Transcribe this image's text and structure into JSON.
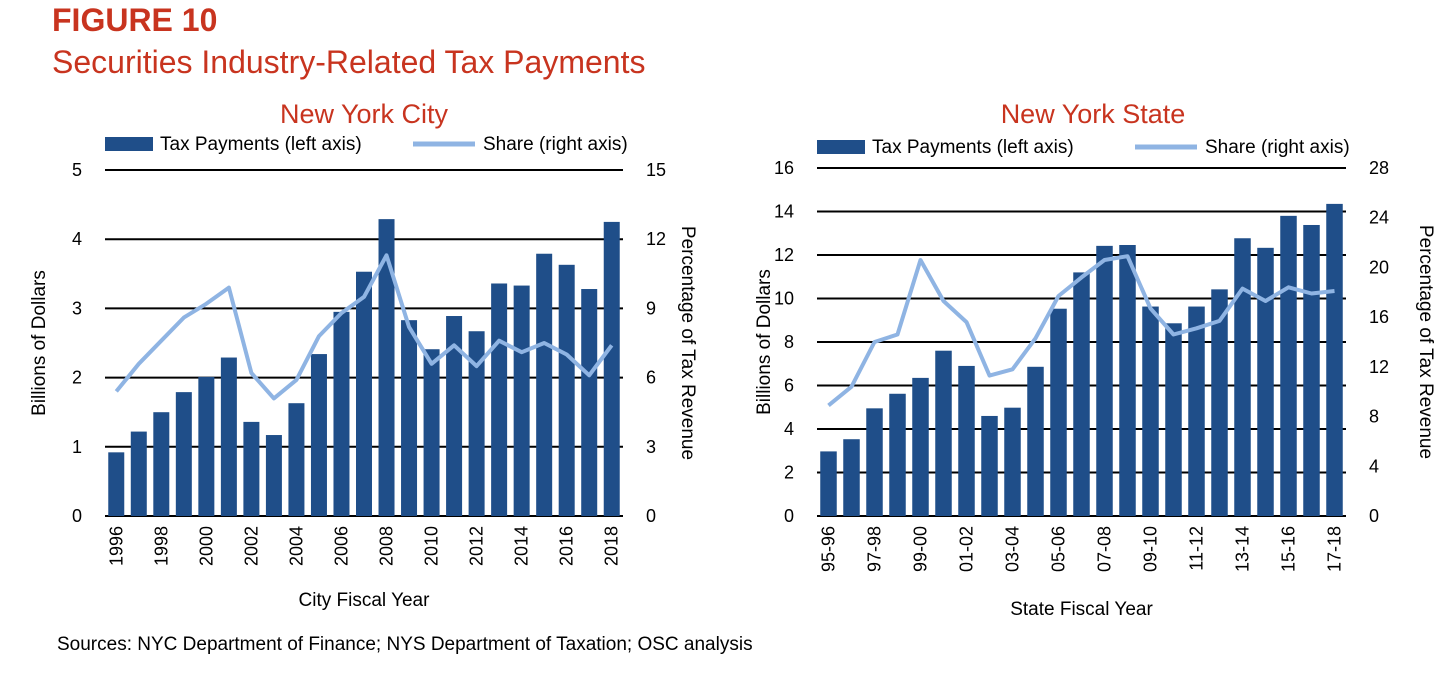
{
  "figure": {
    "label": "FIGURE 10",
    "title": "Securities Industry-Related Tax Payments",
    "source": "Sources: NYC Department of Finance; NYS Department of Taxation; OSC analysis"
  },
  "colors": {
    "bar": "#1f4e89",
    "line": "#8fb4e3",
    "title": "#c8341f",
    "grid": "#000000"
  },
  "chart_data": [
    {
      "type": "bar",
      "title": "New York City",
      "xlabel": "City Fiscal Year",
      "ylabel": "Billions of Dollars",
      "y2label": "Percentage of Tax Revenue",
      "ylim": [
        0,
        5
      ],
      "y2lim": [
        0,
        15
      ],
      "yticks": [
        0,
        1,
        2,
        3,
        4,
        5
      ],
      "y2ticks": [
        0,
        3,
        6,
        9,
        12,
        15
      ],
      "categories": [
        "1996",
        "1997",
        "1998",
        "1999",
        "2000",
        "2001",
        "2002",
        "2003",
        "2004",
        "2005",
        "2006",
        "2007",
        "2008",
        "2009",
        "2010",
        "2011",
        "2012",
        "2013",
        "2014",
        "2015",
        "2016",
        "2017",
        "2018"
      ],
      "xtick_labels": [
        "1996",
        "",
        "1998",
        "",
        "2000",
        "",
        "2002",
        "",
        "2004",
        "",
        "2006",
        "",
        "2008",
        "",
        "2010",
        "",
        "2012",
        "",
        "2014",
        "",
        "2016",
        "",
        "2018"
      ],
      "series": [
        {
          "name": "Tax Payments (left axis)",
          "axis": "left",
          "kind": "bar",
          "values": [
            0.92,
            1.22,
            1.5,
            1.79,
            2.01,
            2.29,
            1.36,
            1.17,
            1.63,
            2.34,
            2.95,
            3.53,
            4.29,
            2.83,
            2.41,
            2.89,
            2.67,
            3.36,
            3.33,
            3.79,
            3.63,
            3.28,
            4.25
          ]
        },
        {
          "name": "Share (right axis)",
          "axis": "right",
          "kind": "line",
          "values": [
            5.4,
            6.6,
            7.6,
            8.6,
            9.2,
            9.9,
            6.2,
            5.1,
            5.9,
            7.8,
            8.8,
            9.5,
            11.3,
            8.2,
            6.6,
            7.4,
            6.5,
            7.6,
            7.1,
            7.5,
            7.0,
            6.1,
            7.4
          ]
        }
      ],
      "legend": "top"
    },
    {
      "type": "bar",
      "title": "New York State",
      "xlabel": "State Fiscal Year",
      "ylabel": "Billions of Dollars",
      "y2label": "Percentage of Tax Revenue",
      "ylim": [
        0,
        16
      ],
      "y2lim": [
        0,
        28
      ],
      "yticks": [
        0,
        2,
        4,
        6,
        8,
        10,
        12,
        14,
        16
      ],
      "y2ticks": [
        0,
        4,
        8,
        12,
        16,
        20,
        24,
        28
      ],
      "categories": [
        "95-96",
        "96-97",
        "97-98",
        "98-99",
        "99-00",
        "00-01",
        "01-02",
        "02-03",
        "03-04",
        "04-05",
        "05-06",
        "06-07",
        "07-08",
        "08-09",
        "09-10",
        "10-11",
        "11-12",
        "12-13",
        "13-14",
        "14-15",
        "15-16",
        "16-17",
        "17-18"
      ],
      "xtick_labels": [
        "95-96",
        "",
        "97-98",
        "",
        "99-00",
        "",
        "01-02",
        "",
        "03-04",
        "",
        "05-06",
        "",
        "07-08",
        "",
        "09-10",
        "",
        "11-12",
        "",
        "13-14",
        "",
        "15-16",
        "",
        "17-18"
      ],
      "series": [
        {
          "name": "Tax Payments (left axis)",
          "axis": "left",
          "kind": "bar",
          "values": [
            2.97,
            3.53,
            4.95,
            5.62,
            6.35,
            7.6,
            6.9,
            4.6,
            4.98,
            6.86,
            9.53,
            11.2,
            12.42,
            12.46,
            9.63,
            8.86,
            9.63,
            10.42,
            12.77,
            12.33,
            13.8,
            13.38,
            14.35
          ]
        },
        {
          "name": "Share (right axis)",
          "axis": "right",
          "kind": "line",
          "values": [
            8.9,
            10.4,
            14.0,
            14.6,
            20.6,
            17.3,
            15.6,
            11.3,
            11.8,
            14.3,
            17.7,
            19.2,
            20.6,
            20.9,
            16.7,
            14.6,
            15.1,
            15.7,
            18.3,
            17.3,
            18.4,
            17.9,
            18.1
          ]
        }
      ],
      "legend": "top"
    }
  ]
}
